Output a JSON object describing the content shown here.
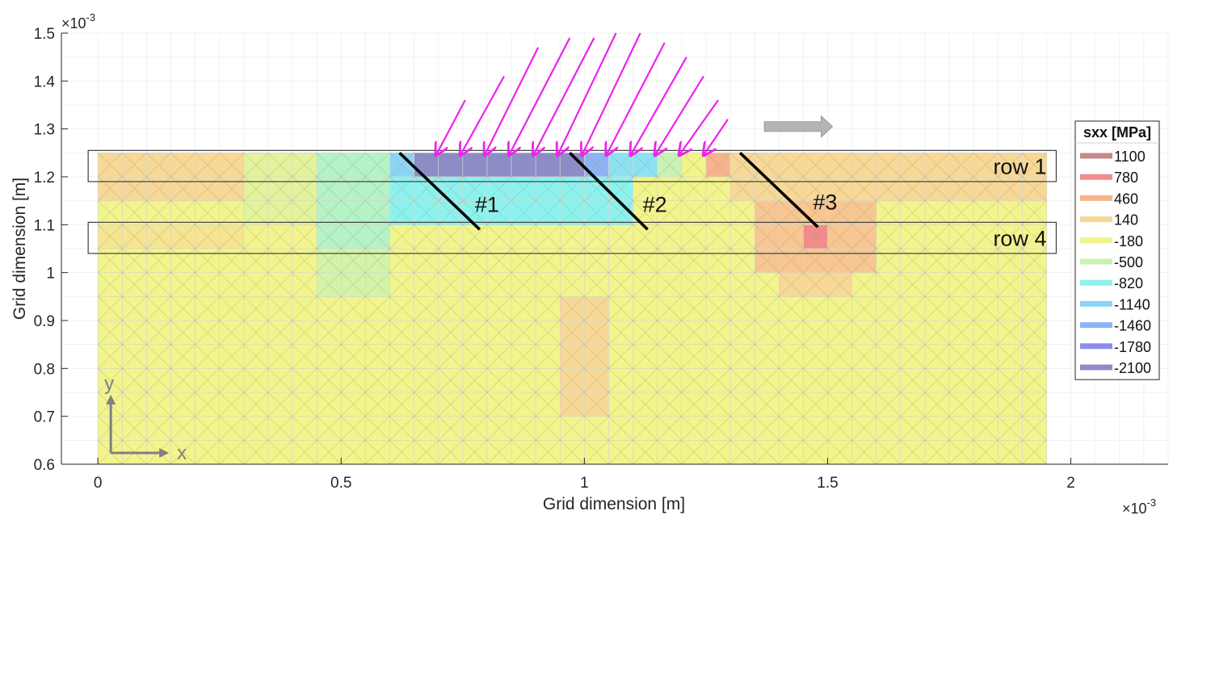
{
  "chart_data": {
    "type": "heatmap",
    "xlabel": "Grid dimension [m]",
    "ylabel": "Grid dimension [m]",
    "xlim": [
      -0.075,
      2.2
    ],
    "ylim": [
      0.6,
      1.5
    ],
    "x_exponent_label": "×10",
    "x_exponent": "-3",
    "y_exponent_label": "×10",
    "y_exponent": "-3",
    "xticks": [
      0,
      0.5,
      1,
      1.5,
      2
    ],
    "xtick_labels": [
      "0",
      "0.5",
      "1",
      "1.5",
      "2"
    ],
    "yticks": [
      0.6,
      0.7,
      0.8,
      0.9,
      1.0,
      1.1,
      1.2,
      1.3,
      1.4,
      1.5
    ],
    "ytick_labels": [
      "0.6",
      "0.7",
      "0.8",
      "0.9",
      "1",
      "1.1",
      "1.2",
      "1.3",
      "1.4",
      "1.5"
    ],
    "grid": true,
    "legend_position": "right",
    "legend": {
      "title": "sxx [MPa]",
      "entries": [
        {
          "label": "1100",
          "value": 1100,
          "color": "#c48a8c"
        },
        {
          "label": "780",
          "value": 780,
          "color": "#f08c8c"
        },
        {
          "label": "460",
          "value": 460,
          "color": "#f7b48c"
        },
        {
          "label": "140",
          "value": 140,
          "color": "#f7d896"
        },
        {
          "label": "-180",
          "value": -180,
          "color": "#f2f48c"
        },
        {
          "label": "-500",
          "value": -500,
          "color": "#c8f2b4"
        },
        {
          "label": "-820",
          "value": -820,
          "color": "#8cf2ee"
        },
        {
          "label": "-1140",
          "value": -1140,
          "color": "#8cd4f5"
        },
        {
          "label": "-1460",
          "value": -1460,
          "color": "#8cb4f5"
        },
        {
          "label": "-1780",
          "value": -1780,
          "color": "#8c8cf0"
        },
        {
          "label": "-2100",
          "value": -2100,
          "color": "#8c8cc8"
        }
      ]
    },
    "field": {
      "x_start": 0,
      "x_end": 1.95,
      "cell_dx": 0.05,
      "y_start": 0.6,
      "y_end": 1.25,
      "cell_dy": 0.05,
      "base_value": -180,
      "hot_zones": [
        {
          "x0": 0.0,
          "x1": 0.3,
          "y0": 1.15,
          "y1": 1.25,
          "value": 140
        },
        {
          "x0": 0.3,
          "x1": 0.45,
          "y0": 1.1,
          "y1": 1.25,
          "value": -300
        },
        {
          "x0": 0.45,
          "x1": 0.6,
          "y0": 1.05,
          "y1": 1.25,
          "value": -600
        },
        {
          "x0": 0.6,
          "x1": 1.1,
          "y0": 1.1,
          "y1": 1.25,
          "value": -820
        },
        {
          "x0": 0.45,
          "x1": 0.6,
          "y0": 0.95,
          "y1": 1.05,
          "value": -400
        },
        {
          "x0": 0.6,
          "x1": 0.65,
          "y0": 1.2,
          "y1": 1.25,
          "value": -1140
        },
        {
          "x0": 0.65,
          "x1": 1.0,
          "y0": 1.2,
          "y1": 1.25,
          "value": -2100
        },
        {
          "x0": 1.0,
          "x1": 1.05,
          "y0": 1.2,
          "y1": 1.25,
          "value": -1460
        },
        {
          "x0": 1.05,
          "x1": 1.15,
          "y0": 1.2,
          "y1": 1.25,
          "value": -1000
        },
        {
          "x0": 1.15,
          "x1": 1.2,
          "y0": 1.2,
          "y1": 1.25,
          "value": -500
        },
        {
          "x0": 1.25,
          "x1": 1.3,
          "y0": 1.2,
          "y1": 1.25,
          "value": 460
        },
        {
          "x0": 1.3,
          "x1": 1.95,
          "y0": 1.15,
          "y1": 1.25,
          "value": 140
        },
        {
          "x0": 1.35,
          "x1": 1.6,
          "y0": 1.0,
          "y1": 1.15,
          "value": 300
        },
        {
          "x0": 1.45,
          "x1": 1.5,
          "y0": 1.05,
          "y1": 1.1,
          "value": 780
        },
        {
          "x0": 1.4,
          "x1": 1.55,
          "y0": 0.95,
          "y1": 1.0,
          "value": 140
        },
        {
          "x0": 0.95,
          "x1": 1.05,
          "y0": 0.7,
          "y1": 0.95,
          "value": 140
        },
        {
          "x0": 0.0,
          "x1": 0.3,
          "y0": 1.05,
          "y1": 1.1,
          "value": 0
        }
      ]
    },
    "rows": [
      {
        "label": "row 1",
        "y0": 1.19,
        "y1": 1.255,
        "x0": -0.01,
        "x1": 1.96
      },
      {
        "label": "row 4",
        "y0": 1.04,
        "y1": 1.105,
        "x0": -0.01,
        "x1": 1.96
      }
    ],
    "cracks": [
      {
        "label": "#1",
        "x0": 0.62,
        "y0": 1.25,
        "x1": 0.785,
        "y1": 1.09
      },
      {
        "label": "#2",
        "x0": 0.97,
        "y0": 1.25,
        "x1": 1.13,
        "y1": 1.09
      },
      {
        "label": "#3",
        "x0": 1.32,
        "y0": 1.25,
        "x1": 1.48,
        "y1": 1.095
      }
    ],
    "load_arrows": {
      "color": "#ee22ee",
      "tips": [
        {
          "x": 0.695,
          "y": 1.245
        },
        {
          "x": 0.745,
          "y": 1.245
        },
        {
          "x": 0.795,
          "y": 1.245
        },
        {
          "x": 0.845,
          "y": 1.245
        },
        {
          "x": 0.895,
          "y": 1.245
        },
        {
          "x": 0.945,
          "y": 1.245
        },
        {
          "x": 0.995,
          "y": 1.245
        },
        {
          "x": 1.045,
          "y": 1.245
        },
        {
          "x": 1.095,
          "y": 1.245
        },
        {
          "x": 1.145,
          "y": 1.245
        },
        {
          "x": 1.195,
          "y": 1.245
        },
        {
          "x": 1.245,
          "y": 1.245
        }
      ],
      "tails": [
        {
          "x": 0.755,
          "y": 1.36
        },
        {
          "x": 0.835,
          "y": 1.41
        },
        {
          "x": 0.905,
          "y": 1.47
        },
        {
          "x": 0.97,
          "y": 1.49
        },
        {
          "x": 1.02,
          "y": 1.49
        },
        {
          "x": 1.065,
          "y": 1.5
        },
        {
          "x": 1.115,
          "y": 1.5
        },
        {
          "x": 1.165,
          "y": 1.48
        },
        {
          "x": 1.21,
          "y": 1.45
        },
        {
          "x": 1.245,
          "y": 1.41
        },
        {
          "x": 1.275,
          "y": 1.36
        },
        {
          "x": 1.295,
          "y": 1.32
        }
      ]
    },
    "motion_arrow": {
      "x0": 1.37,
      "x1": 1.51,
      "y": 1.305,
      "color": "#b4b4b4"
    },
    "axes_indicator": {
      "x_label": "x",
      "y_label": "y",
      "color": "#808080"
    }
  }
}
